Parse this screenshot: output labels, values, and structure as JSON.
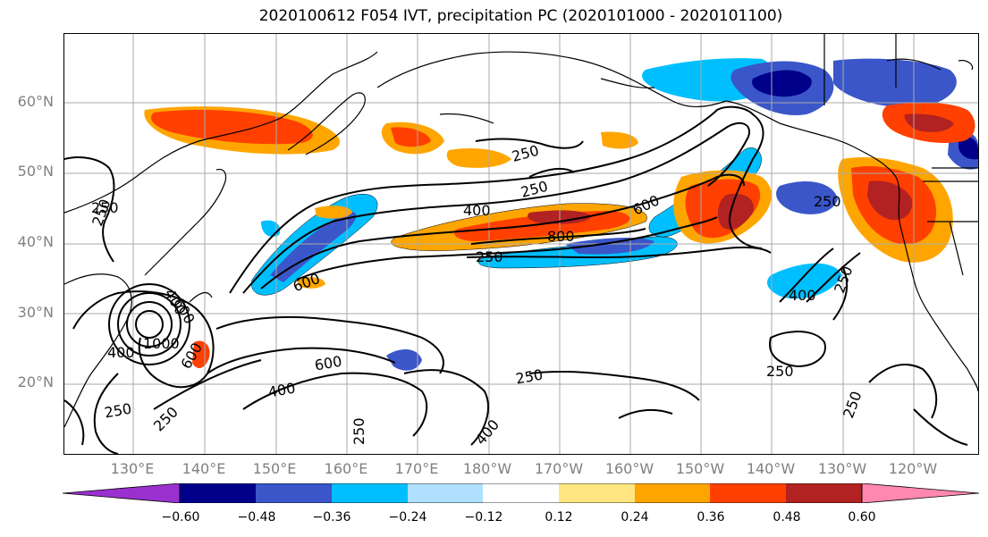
{
  "title": "2020100612 F054 IVT, precipitation PC (2020101000 - 2020101100)",
  "lat_labels": [
    "60°N",
    "50°N",
    "40°N",
    "30°N",
    "20°N"
  ],
  "lon_labels": [
    "130°E",
    "140°E",
    "150°E",
    "160°E",
    "170°E",
    "180°W",
    "170°W",
    "160°W",
    "150°W",
    "140°W",
    "130°W",
    "120°W"
  ],
  "contour_labels": [
    "250",
    "250",
    "250",
    "400",
    "600",
    "800",
    "250",
    "600",
    "250",
    "400",
    "250",
    "400",
    "250",
    "600",
    "1000",
    "600",
    "400",
    "400",
    "600",
    "250",
    "250",
    "250",
    "400",
    "250",
    "250",
    "250"
  ],
  "colorbar": {
    "ticks": [
      "−0.60",
      "−0.48",
      "−0.36",
      "−0.24",
      "−0.12",
      "0.12",
      "0.24",
      "0.36",
      "0.48",
      "0.60"
    ],
    "colors": [
      "#9b30d0",
      "#00008b",
      "#3a56c8",
      "#00bfff",
      "#b0e0ff",
      "#ffffff",
      "#ffe680",
      "#ffa500",
      "#ff4000",
      "#b22222",
      "#ff88b0"
    ]
  },
  "colors": {
    "grid": "#aaaaaa",
    "coast": "#000000",
    "contour": "#000000"
  }
}
